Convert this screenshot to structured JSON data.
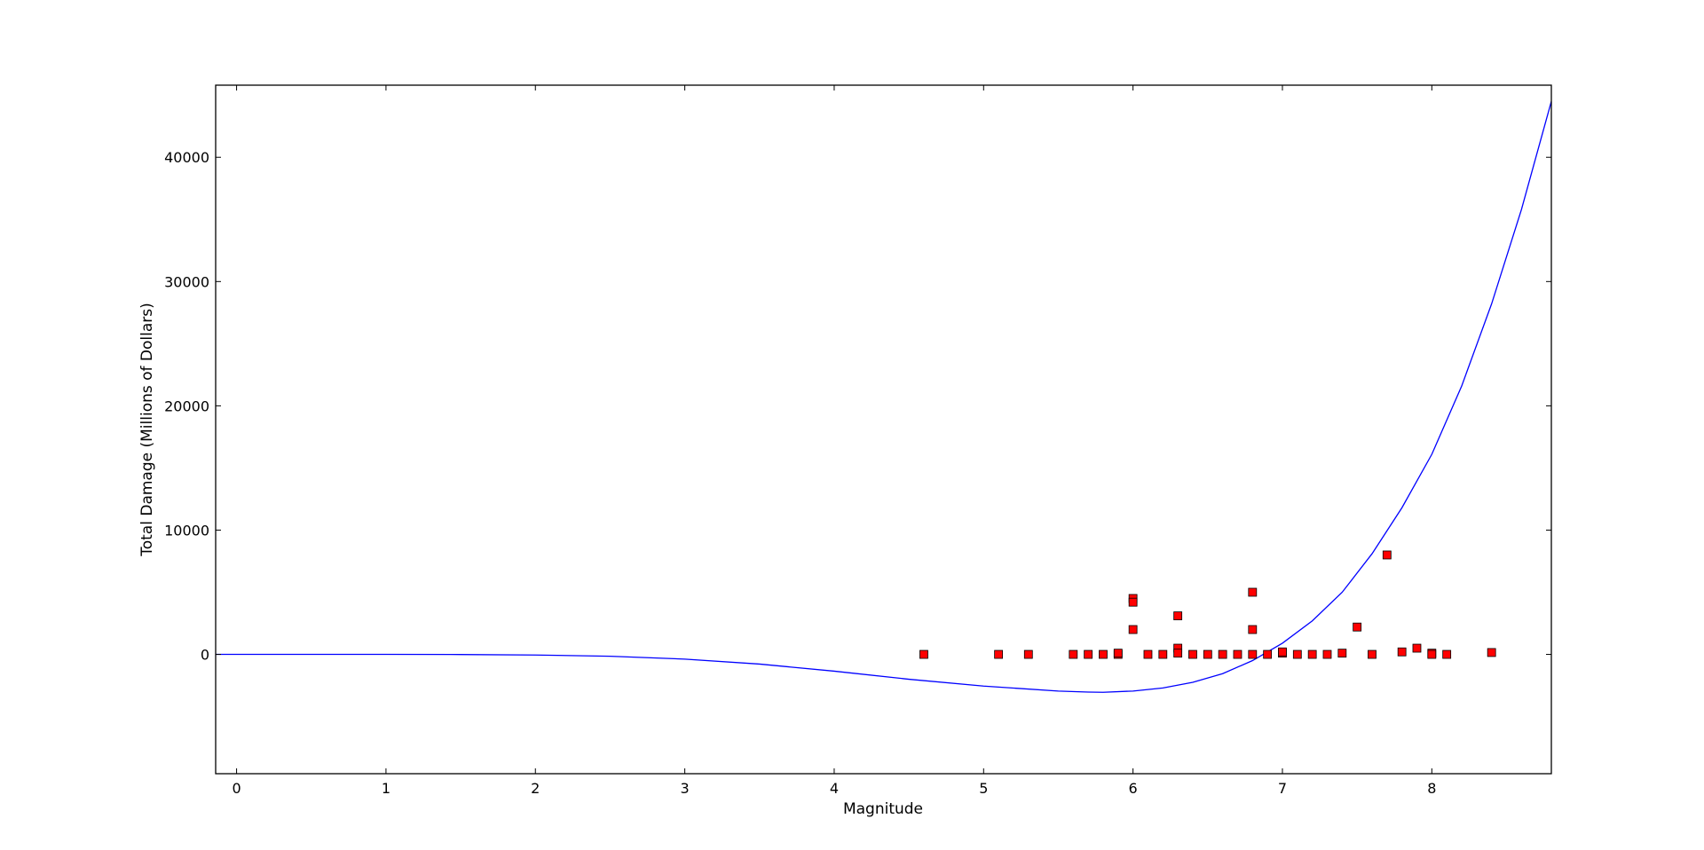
{
  "colors": {
    "background": "#ffffff",
    "axes": "#000000",
    "curve": "#0000ff",
    "marker_fill": "#ff0000",
    "marker_edge": "#000000"
  },
  "chart_data": {
    "type": "scatter",
    "title": "",
    "xlabel": "Magnitude",
    "ylabel": "Total Damage (Millions of Dollars)",
    "xlim": [
      -0.14,
      8.8
    ],
    "ylim": [
      -9600,
      45800
    ],
    "x_ticks": [
      0,
      1,
      2,
      3,
      4,
      5,
      6,
      7,
      8
    ],
    "y_ticks": [
      0,
      10000,
      20000,
      30000,
      40000
    ],
    "x_tick_labels": [
      "0",
      "1",
      "2",
      "3",
      "4",
      "5",
      "6",
      "7",
      "8"
    ],
    "y_tick_labels": [
      "0",
      "10000",
      "20000",
      "30000",
      "40000"
    ],
    "grid": false,
    "legend": false,
    "series": [
      {
        "type": "scatter",
        "marker": "square",
        "color": "#ff0000",
        "points": [
          [
            4.6,
            0
          ],
          [
            5.1,
            0
          ],
          [
            5.3,
            0
          ],
          [
            5.6,
            0
          ],
          [
            5.7,
            0
          ],
          [
            5.8,
            0
          ],
          [
            5.9,
            0
          ],
          [
            5.9,
            100
          ],
          [
            6.0,
            4500
          ],
          [
            6.0,
            4200
          ],
          [
            6.0,
            2000
          ],
          [
            6.1,
            0
          ],
          [
            6.2,
            0
          ],
          [
            6.3,
            3100
          ],
          [
            6.3,
            500
          ],
          [
            6.3,
            100
          ],
          [
            6.4,
            0
          ],
          [
            6.5,
            0
          ],
          [
            6.6,
            0
          ],
          [
            6.7,
            0
          ],
          [
            6.8,
            5000
          ],
          [
            6.8,
            2000
          ],
          [
            6.8,
            0
          ],
          [
            6.9,
            0
          ],
          [
            7.0,
            100
          ],
          [
            7.0,
            200
          ],
          [
            7.1,
            0
          ],
          [
            7.2,
            0
          ],
          [
            7.3,
            0
          ],
          [
            7.4,
            100
          ],
          [
            7.5,
            2200
          ],
          [
            7.6,
            0
          ],
          [
            7.7,
            8000
          ],
          [
            7.8,
            200
          ],
          [
            7.9,
            500
          ],
          [
            8.0,
            100
          ],
          [
            8.0,
            0
          ],
          [
            8.1,
            0
          ],
          [
            8.4,
            150
          ]
        ]
      },
      {
        "type": "line",
        "color": "#0000ff",
        "points": [
          [
            -0.14,
            0
          ],
          [
            1.0,
            0
          ],
          [
            1.5,
            -10
          ],
          [
            2.0,
            -50
          ],
          [
            2.5,
            -150
          ],
          [
            3.0,
            -380
          ],
          [
            3.5,
            -780
          ],
          [
            4.0,
            -1350
          ],
          [
            4.5,
            -2000
          ],
          [
            5.0,
            -2550
          ],
          [
            5.5,
            -2950
          ],
          [
            5.7,
            -3030
          ],
          [
            5.8,
            -3050
          ],
          [
            6.0,
            -2950
          ],
          [
            6.2,
            -2700
          ],
          [
            6.4,
            -2250
          ],
          [
            6.6,
            -1550
          ],
          [
            6.8,
            -500
          ],
          [
            7.0,
            900
          ],
          [
            7.2,
            2700
          ],
          [
            7.4,
            5000
          ],
          [
            7.6,
            8100
          ],
          [
            7.8,
            11800
          ],
          [
            8.0,
            16100
          ],
          [
            8.2,
            21600
          ],
          [
            8.4,
            28200
          ],
          [
            8.6,
            35800
          ],
          [
            8.8,
            44500
          ]
        ]
      }
    ]
  }
}
